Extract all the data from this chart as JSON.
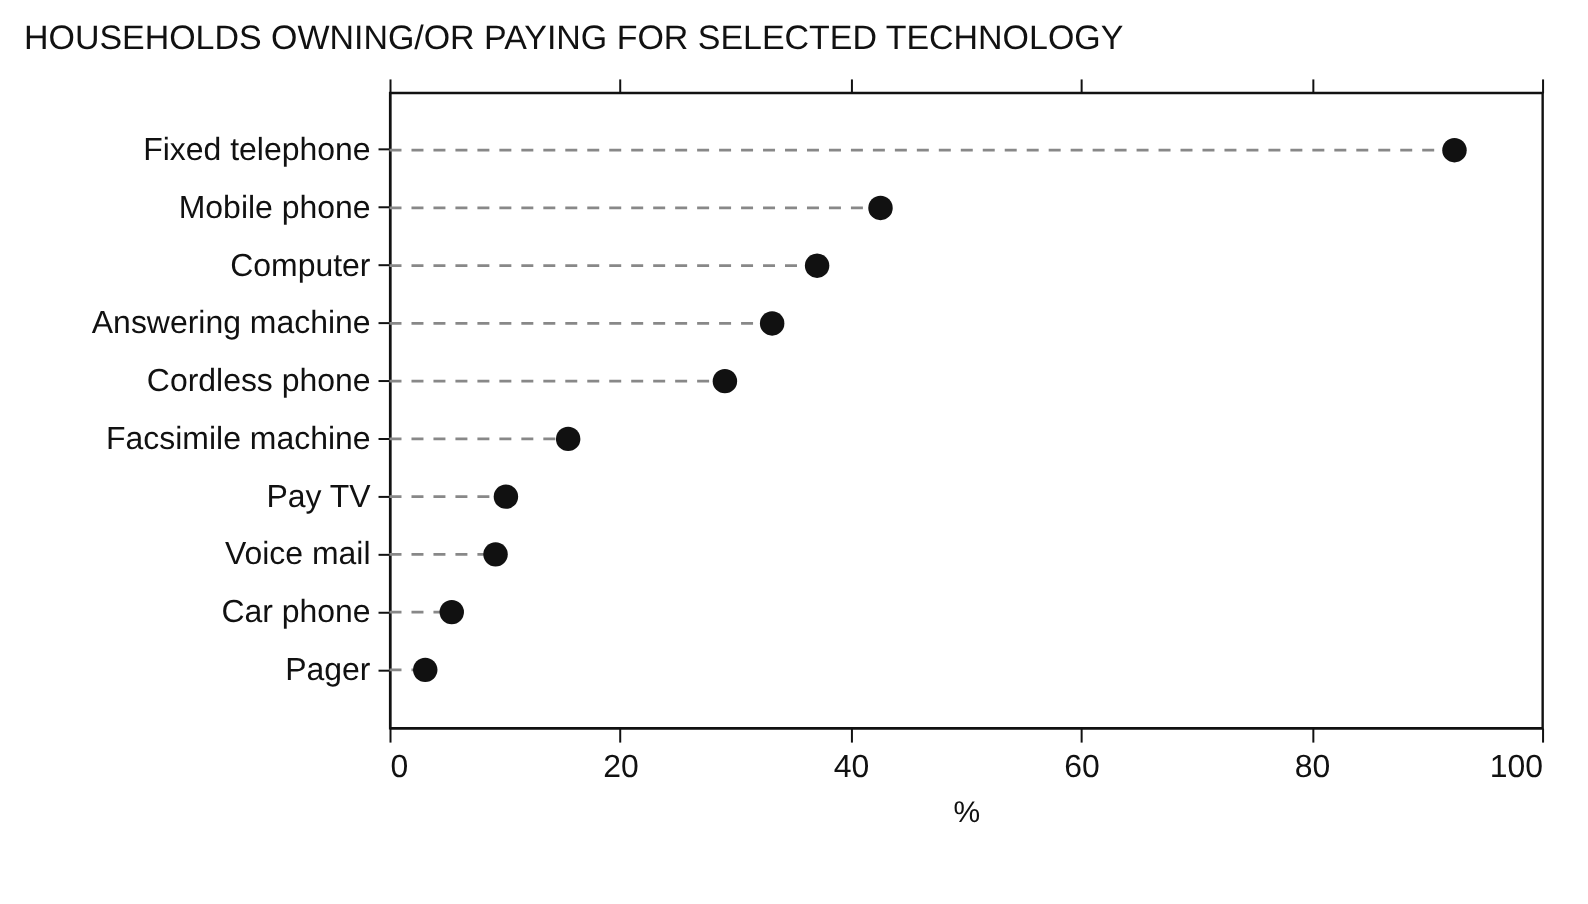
{
  "chart_data": {
    "type": "lollipop",
    "title": "HOUSEHOLDS OWNING/OR PAYING FOR SELECTED TECHNOLOGY",
    "xlabel": "%",
    "orientation": "horizontal",
    "categories": [
      "Fixed telephone",
      "Mobile phone",
      "Computer",
      "Answering machine",
      "Cordless phone",
      "Facsimile machine",
      "Pay TV",
      "Voice mail",
      "Car phone",
      "Pager"
    ],
    "values": [
      92.4,
      42.6,
      37.1,
      33.2,
      29.1,
      15.5,
      10.1,
      9.2,
      5.4,
      3.1
    ],
    "color": "#111111",
    "marker": "circle",
    "line_style": "dashed",
    "xlim": [
      0,
      100
    ],
    "xticks": [
      0,
      20,
      40,
      60,
      80,
      100
    ],
    "grid": false
  }
}
